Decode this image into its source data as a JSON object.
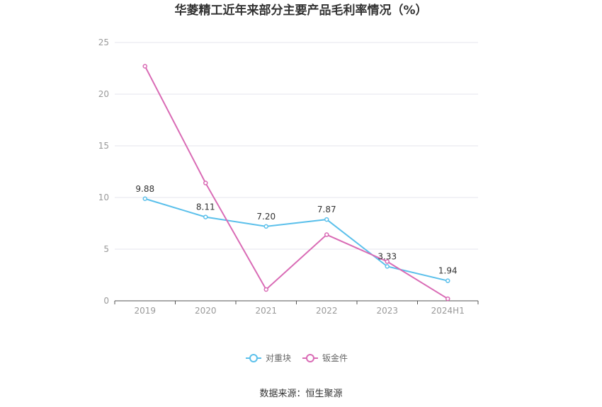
{
  "chart_data": {
    "type": "line",
    "title": "华菱精工近年来部分主要产品毛利率情况（%）",
    "categories": [
      "2019",
      "2020",
      "2021",
      "2022",
      "2023",
      "2024H1"
    ],
    "ylim": [
      0,
      25
    ],
    "yticks": [
      "0",
      "5",
      "10",
      "15",
      "20",
      "25"
    ],
    "grid": true,
    "legend_position": "bottom-center",
    "series": [
      {
        "name": "对重块",
        "color": "#5bc0eb",
        "values": [
          9.88,
          8.11,
          7.2,
          7.87,
          3.33,
          1.94
        ],
        "labels": [
          "9.88",
          "8.11",
          "7.20",
          "7.87",
          "3.33",
          "1.94"
        ]
      },
      {
        "name": "钣金件",
        "color": "#d96bb5",
        "values": [
          22.7,
          11.4,
          1.1,
          6.4,
          3.8,
          0.2
        ]
      }
    ],
    "source": "数据来源：恒生聚源"
  }
}
